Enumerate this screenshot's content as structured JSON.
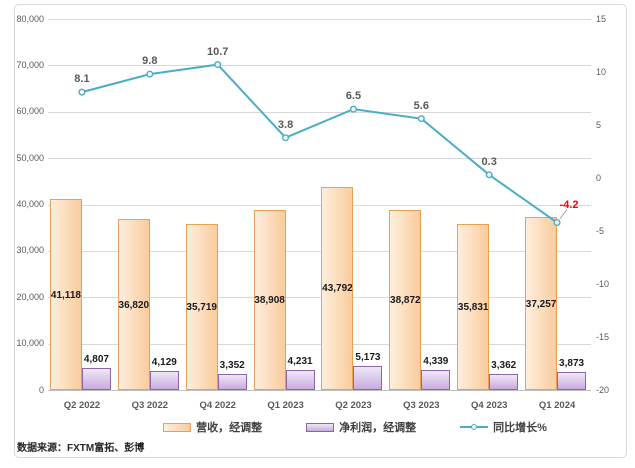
{
  "source_note": "数据来源：FXTM富拓、彭博",
  "colors": {
    "revenue_fill_light": "#FDEEDE",
    "revenue_fill_dark": "#FACC9C",
    "revenue_border": "#E8A154",
    "profit_fill_light": "#EFE7F7",
    "profit_fill_dark": "#C8ABDE",
    "profit_border": "#8C65AC",
    "growth_line": "#4BACC6",
    "negative_label": "#FF0000",
    "gridline": "#D9D9D9",
    "axis_text": "#595959"
  },
  "chart_data": {
    "type": "combo",
    "title": "",
    "categories": [
      "Q2 2022",
      "Q3 2022",
      "Q4 2022",
      "Q1 2023",
      "Q2 2023",
      "Q3 2023",
      "Q4 2023",
      "Q1 2024"
    ],
    "series": [
      {
        "name": "营收，经调整",
        "type": "bar",
        "axis": "left",
        "values": [
          41118,
          36820,
          35719,
          38908,
          43792,
          38872,
          35831,
          37257
        ],
        "labels": [
          "41,118",
          "36,820",
          "35,719",
          "38,908",
          "43,792",
          "38,872",
          "35,831",
          "37,257"
        ]
      },
      {
        "name": "净利润，经调整",
        "type": "bar",
        "axis": "left",
        "values": [
          4807,
          4129,
          3352,
          4231,
          5173,
          4339,
          3362,
          3873
        ],
        "labels": [
          "4,807",
          "4,129",
          "3,352",
          "4,231",
          "5,173",
          "4,339",
          "3,362",
          "3,873"
        ]
      },
      {
        "name": "同比增长%",
        "type": "line",
        "axis": "right",
        "values": [
          8.1,
          9.8,
          10.7,
          3.8,
          6.5,
          5.6,
          0.3,
          -4.2
        ],
        "labels": [
          "8.1",
          "9.8",
          "10.7",
          "3.8",
          "6.5",
          "5.6",
          "0.3",
          "-4.2"
        ]
      }
    ],
    "left_axis": {
      "min": 0,
      "max": 80000,
      "step": 10000,
      "tick_labels": [
        "80,000",
        "70,000",
        "60,000",
        "50,000",
        "40,000",
        "30,000",
        "20,000",
        "10,000",
        "0"
      ]
    },
    "right_axis": {
      "min": -20,
      "max": 15,
      "step": 5,
      "tick_labels": [
        "15",
        "10",
        "5",
        "0",
        "-5",
        "-10",
        "-15",
        "-20"
      ]
    },
    "grid": true,
    "legend_position": "bottom"
  }
}
